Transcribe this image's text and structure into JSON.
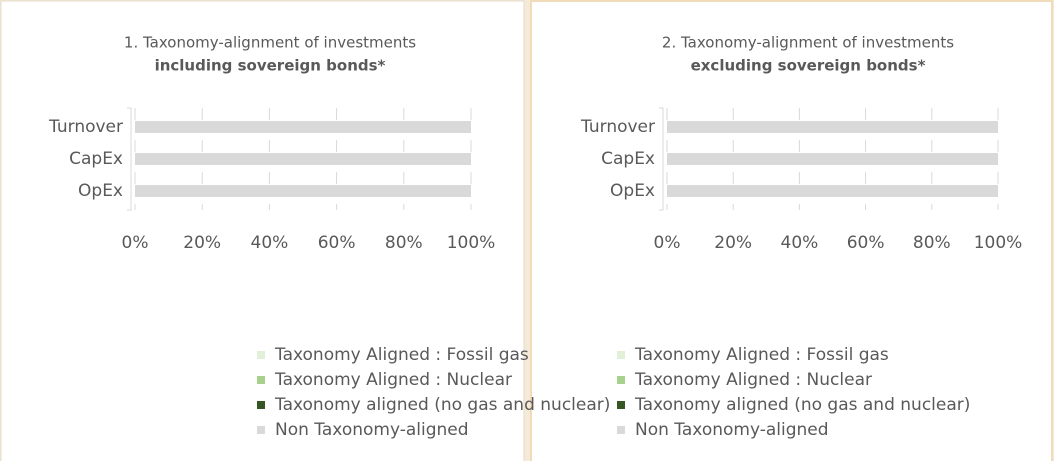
{
  "chart_data": [
    {
      "type": "stacked_bar_horizontal",
      "title": "1. Taxonomy-alignment of investments",
      "subtitle": "including sovereign bonds*",
      "categories": [
        "Turnover",
        "CapEx",
        "OpEx"
      ],
      "series": [
        {
          "name": "Taxonomy Aligned : Fossil gas",
          "color": "#e2f0d9",
          "values": [
            0,
            0,
            0
          ]
        },
        {
          "name": "Taxonomy Aligned : Nuclear",
          "color": "#a9d18e",
          "values": [
            0,
            0,
            0
          ]
        },
        {
          "name": "Taxonomy aligned (no gas and nuclear)",
          "color": "#375623",
          "values": [
            0,
            0,
            0
          ]
        },
        {
          "name": "Non Taxonomy-aligned",
          "color": "#d9d9d9",
          "values": [
            100,
            100,
            100
          ]
        }
      ],
      "xlim": [
        0,
        100
      ],
      "xticks": [
        {
          "value": 0,
          "label": "0%"
        },
        {
          "value": 20,
          "label": "20%"
        },
        {
          "value": 40,
          "label": "40%"
        },
        {
          "value": 60,
          "label": "60%"
        },
        {
          "value": 80,
          "label": "80%"
        },
        {
          "value": 100,
          "label": "100%"
        }
      ],
      "grid": true
    },
    {
      "type": "stacked_bar_horizontal",
      "title": "2. Taxonomy-alignment of investments",
      "subtitle": "excluding sovereign bonds*",
      "categories": [
        "Turnover",
        "CapEx",
        "OpEx"
      ],
      "series": [
        {
          "name": "Taxonomy Aligned : Fossil gas",
          "color": "#e2f0d9",
          "values": [
            0,
            0,
            0
          ]
        },
        {
          "name": "Taxonomy Aligned : Nuclear",
          "color": "#a9d18e",
          "values": [
            0,
            0,
            0
          ]
        },
        {
          "name": "Taxonomy aligned (no gas and nuclear)",
          "color": "#375623",
          "values": [
            0,
            0,
            0
          ]
        },
        {
          "name": "Non Taxonomy-aligned",
          "color": "#d9d9d9",
          "values": [
            100,
            100,
            100
          ]
        }
      ],
      "xlim": [
        0,
        100
      ],
      "xticks": [
        {
          "value": 0,
          "label": "0%"
        },
        {
          "value": 20,
          "label": "20%"
        },
        {
          "value": 40,
          "label": "40%"
        },
        {
          "value": 60,
          "label": "60%"
        },
        {
          "value": 80,
          "label": "80%"
        },
        {
          "value": 100,
          "label": "100%"
        }
      ],
      "grid": true
    }
  ]
}
